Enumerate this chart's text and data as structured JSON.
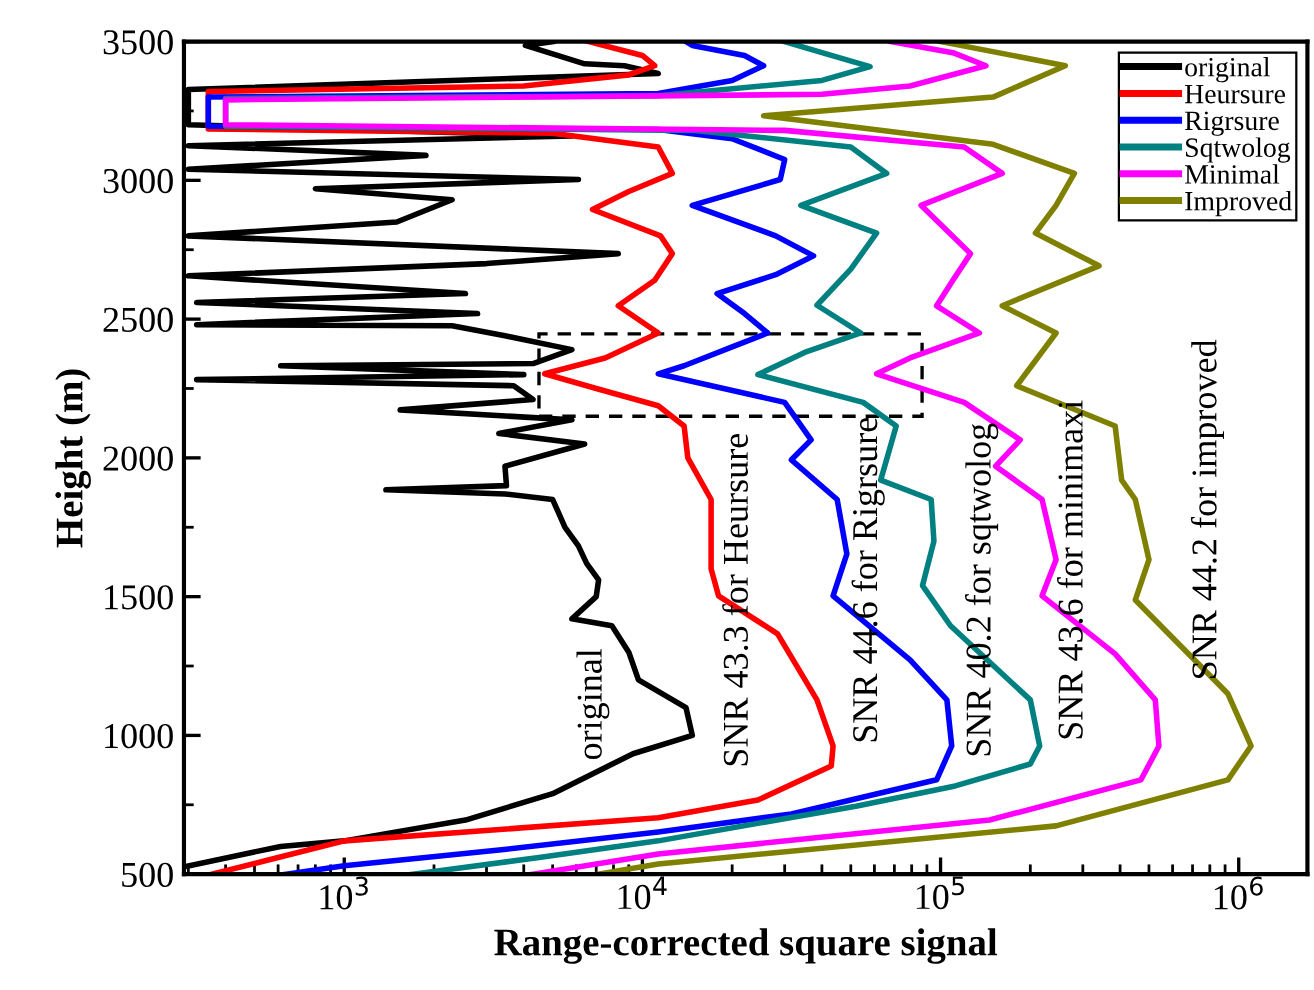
{
  "chart_data": {
    "type": "line",
    "xlabel": "Range-corrected square signal",
    "ylabel": "Height (m)",
    "log": "x",
    "grid": false,
    "legend": "top right",
    "marker": "none",
    "line_style": "solid",
    "xlim": [
      290,
      1700000
    ],
    "ylim": [
      500,
      3500
    ],
    "xticks": [
      {
        "value": 1000,
        "label": "10$^{3}$"
      },
      {
        "value": 10000,
        "label": "10$^{4}$"
      },
      {
        "value": 100000,
        "label": "10$^{5}$"
      },
      {
        "value": 1000000,
        "label": "10$^{6}$"
      }
    ],
    "yticks": [
      500,
      1000,
      1500,
      2000,
      2500,
      3000,
      3500
    ],
    "series": [
      {
        "name": "original",
        "color": "#000000",
        "x": [
          300,
          612,
          1000,
          2550,
          5000,
          9300,
          14700,
          14000,
          9700,
          9000,
          7900,
          5800,
          7000,
          7130,
          6500,
          6100,
          5500,
          5000,
          3460,
          1380,
          3500,
          3460,
          6400,
          3300,
          5800,
          1540,
          4300,
          3700,
          320,
          4000,
          612,
          4300,
          5800,
          3460,
          2300,
          320,
          2800,
          320,
          2550,
          300,
          3000,
          8300,
          300,
          1500,
          2300,
          800,
          6100,
          300,
          1880,
          300,
          5800,
          300,
          300,
          11300,
          8700,
          6400,
          4050,
          5000
        ],
        "values": [
          530,
          600,
          620,
          695,
          790,
          934,
          1000,
          1100,
          1200,
          1300,
          1395,
          1420,
          1500,
          1560,
          1620,
          1683,
          1750,
          1850,
          1870,
          1885,
          1900,
          1970,
          2050,
          2088,
          2137,
          2173,
          2210,
          2260,
          2282,
          2300,
          2332,
          2340,
          2390,
          2440,
          2476,
          2480,
          2520,
          2560,
          2592,
          2656,
          2700,
          2736,
          2800,
          2850,
          2930,
          2970,
          3003,
          3040,
          3090,
          3125,
          3160,
          3200,
          3327,
          3385,
          3413,
          3420,
          3486,
          3500
        ]
      },
      {
        "name": "Heursure",
        "color": "#ff0000",
        "x": [
          360,
          600,
          1000,
          11300,
          24400,
          43000,
          43600,
          38500,
          28400,
          18000,
          17000,
          17000,
          14200,
          13800,
          11300,
          7000,
          4700,
          7500,
          11300,
          8300,
          11000,
          12600,
          11500,
          6800,
          9000,
          12600,
          11300,
          5000,
          350,
          350,
          4000,
          9000,
          11000,
          10000,
          6600
        ],
        "values": [
          500,
          560,
          620,
          703,
          767,
          890,
          962,
          1128,
          1366,
          1503,
          1600,
          1850,
          2000,
          2115,
          2188,
          2250,
          2303,
          2360,
          2450,
          2548,
          2640,
          2736,
          2800,
          2895,
          2960,
          3025,
          3120,
          3170,
          3185,
          3320,
          3340,
          3380,
          3413,
          3450,
          3500
        ]
      },
      {
        "name": "Rigrsure",
        "color": "#0000ff",
        "x": [
          640,
          1000,
          3500,
          11300,
          31600,
          97000,
          109000,
          105000,
          79000,
          43600,
          48500,
          45000,
          31600,
          36800,
          30000,
          11300,
          13800,
          20000,
          26300,
          22000,
          17800,
          28000,
          37500,
          28000,
          14700,
          29000,
          30000,
          20000,
          11300,
          350,
          350,
          11300,
          20000,
          25500,
          22000,
          14700,
          14000
        ],
        "values": [
          500,
          530,
          590,
          652,
          717,
          840,
          962,
          1128,
          1272,
          1503,
          1654,
          1850,
          1993,
          2065,
          2200,
          2303,
          2332,
          2400,
          2450,
          2520,
          2592,
          2660,
          2728,
          2800,
          2910,
          3003,
          3075,
          3150,
          3183,
          3195,
          3300,
          3313,
          3360,
          3413,
          3450,
          3486,
          3500
        ]
      },
      {
        "name": "Sqtwolog",
        "color": "#008080",
        "x": [
          1700,
          4500,
          11300,
          52000,
          112000,
          200000,
          215000,
          200000,
          108000,
          87000,
          95000,
          93000,
          63000,
          71000,
          55000,
          24400,
          35000,
          54000,
          38500,
          50000,
          61000,
          34000,
          66000,
          50000,
          15000,
          400,
          400,
          11300,
          40000,
          58000,
          40000,
          30000
        ],
        "values": [
          500,
          560,
          620,
          745,
          818,
          897,
          962,
          1128,
          1395,
          1540,
          1700,
          1850,
          1920,
          2115,
          2200,
          2300,
          2380,
          2450,
          2550,
          2680,
          2810,
          2910,
          3025,
          3120,
          3180,
          3195,
          3295,
          3305,
          3360,
          3410,
          3460,
          3500
        ]
      },
      {
        "name": "Minimal",
        "color": "#ff00ff",
        "x": [
          4300,
          11300,
          146000,
          470000,
          540000,
          525000,
          385000,
          219000,
          244000,
          219000,
          153000,
          185000,
          120000,
          61000,
          79000,
          135000,
          97000,
          110000,
          126000,
          86000,
          161000,
          120000,
          30000,
          400,
          400,
          40000,
          79000,
          142000,
          110000,
          68000
        ],
        "values": [
          500,
          573,
          695,
          840,
          962,
          1128,
          1294,
          1503,
          1633,
          1850,
          1970,
          2065,
          2200,
          2303,
          2360,
          2450,
          2548,
          2640,
          2736,
          2910,
          3025,
          3120,
          3180,
          3200,
          3290,
          3310,
          3340,
          3413,
          3460,
          3500
        ]
      },
      {
        "name": "Improved",
        "color": "#808000",
        "x": [
          7100,
          11300,
          244000,
          920000,
          1100000,
          920000,
          450000,
          500000,
          450000,
          405000,
          385000,
          180000,
          244000,
          161000,
          340000,
          208000,
          244000,
          281000,
          150000,
          25500,
          150000,
          262000,
          112000,
          100000
        ],
        "values": [
          500,
          537,
          674,
          840,
          962,
          1150,
          1488,
          1633,
          1850,
          1920,
          2115,
          2260,
          2450,
          2548,
          2692,
          2810,
          2910,
          3025,
          3130,
          3233,
          3300,
          3413,
          3490,
          3500
        ]
      }
    ],
    "annotations": [
      "original",
      "SNR 43.3 for Heursure",
      "SNR 44.6 for Rigrsure",
      "SNR 40.2 for sqtwolog",
      "SNR 43.6 for minimaxi",
      "SNR 44.2 for improved"
    ]
  }
}
